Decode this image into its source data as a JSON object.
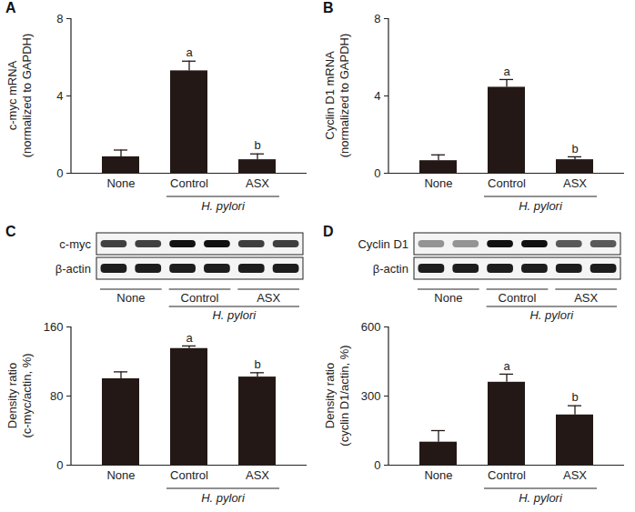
{
  "chart_data": [
    {
      "type": "bar",
      "title": "A",
      "categories": [
        "None",
        "Control",
        "ASX"
      ],
      "group": {
        "label": "H. pylori",
        "categories": [
          "Control",
          "ASX"
        ]
      },
      "ylabel": [
        "c-myc mRNA",
        "(normalized to GAPDH)"
      ],
      "values": [
        0.85,
        5.3,
        0.7
      ],
      "errors": [
        0.35,
        0.5,
        0.3
      ],
      "annotations": [
        null,
        "a",
        "b"
      ],
      "ylim": [
        0,
        8
      ],
      "yticks": [
        0,
        4,
        8
      ],
      "color": "#231815"
    },
    {
      "type": "bar",
      "title": "B",
      "categories": [
        "None",
        "Control",
        "ASX"
      ],
      "group": {
        "label": "H. pylori",
        "categories": [
          "Control",
          "ASX"
        ]
      },
      "ylabel": [
        "Cyclin D1 mRNA",
        "(normalized to GAPDH)"
      ],
      "values": [
        0.65,
        4.45,
        0.7
      ],
      "errors": [
        0.3,
        0.4,
        0.15
      ],
      "annotations": [
        null,
        "a",
        "b"
      ],
      "ylim": [
        0,
        8
      ],
      "yticks": [
        0,
        4,
        8
      ],
      "color": "#231815"
    },
    {
      "type": "bar",
      "title": "C",
      "categories": [
        "None",
        "Control",
        "ASX"
      ],
      "group": {
        "label": "H. pylori",
        "categories": [
          "Control",
          "ASX"
        ]
      },
      "blot": {
        "rows": [
          "c-myc",
          "β-actin"
        ]
      },
      "ylabel": [
        "Density ratio",
        "(c-myc/actin, %)"
      ],
      "values": [
        100,
        135,
        102
      ],
      "errors": [
        8,
        3,
        5
      ],
      "annotations": [
        null,
        "a",
        "b"
      ],
      "ylim": [
        0,
        160
      ],
      "yticks": [
        0,
        80,
        160
      ],
      "color": "#231815"
    },
    {
      "type": "bar",
      "title": "D",
      "categories": [
        "None",
        "Control",
        "ASX"
      ],
      "group": {
        "label": "H. pylori",
        "categories": [
          "Control",
          "ASX"
        ]
      },
      "blot": {
        "rows": [
          "Cyclin D1",
          "β-actin"
        ]
      },
      "ylabel": [
        "Density ratio",
        "(cyclin D1/actin, %)"
      ],
      "values": [
        100,
        360,
        218
      ],
      "errors": [
        50,
        35,
        40
      ],
      "annotations": [
        null,
        "a",
        "b"
      ],
      "ylim": [
        0,
        600
      ],
      "yticks": [
        0,
        300,
        600
      ],
      "color": "#231815"
    }
  ]
}
